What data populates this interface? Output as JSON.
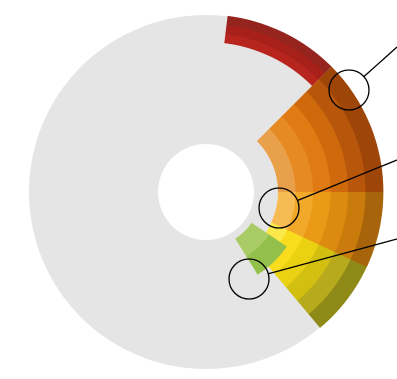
{
  "diagram": {
    "type": "radial-donut-gauge",
    "background_ring_color": "#e5e5e5",
    "center_hole_color": "#ffffff",
    "callout_line_color": "#000000",
    "segments": [
      {
        "name": "red-arc",
        "bands": [
          "#b8251f",
          "#a8201a",
          "#96241e"
        ]
      },
      {
        "name": "orange-sector",
        "bands": [
          "#e9a04b",
          "#e68a23",
          "#e07a12",
          "#cf6a0c",
          "#b8570b",
          "#9e4508"
        ]
      },
      {
        "name": "amber-sector",
        "bands": [
          "#f6bb55",
          "#f2a92a",
          "#eb9a18",
          "#dc8b10",
          "#c97c0c",
          "#a8640a"
        ]
      },
      {
        "name": "yellow-sector",
        "bands": [
          "#fbe84a",
          "#f8dc1d",
          "#ead112",
          "#d2bf10",
          "#b7aa1c",
          "#8f8a17"
        ]
      },
      {
        "name": "green-sector",
        "bands": [
          "#aacc66",
          "#93c04a"
        ]
      }
    ],
    "callouts": [
      {
        "name": "callout-1"
      },
      {
        "name": "callout-2"
      },
      {
        "name": "callout-3"
      },
      {
        "name": "callout-4"
      }
    ]
  }
}
